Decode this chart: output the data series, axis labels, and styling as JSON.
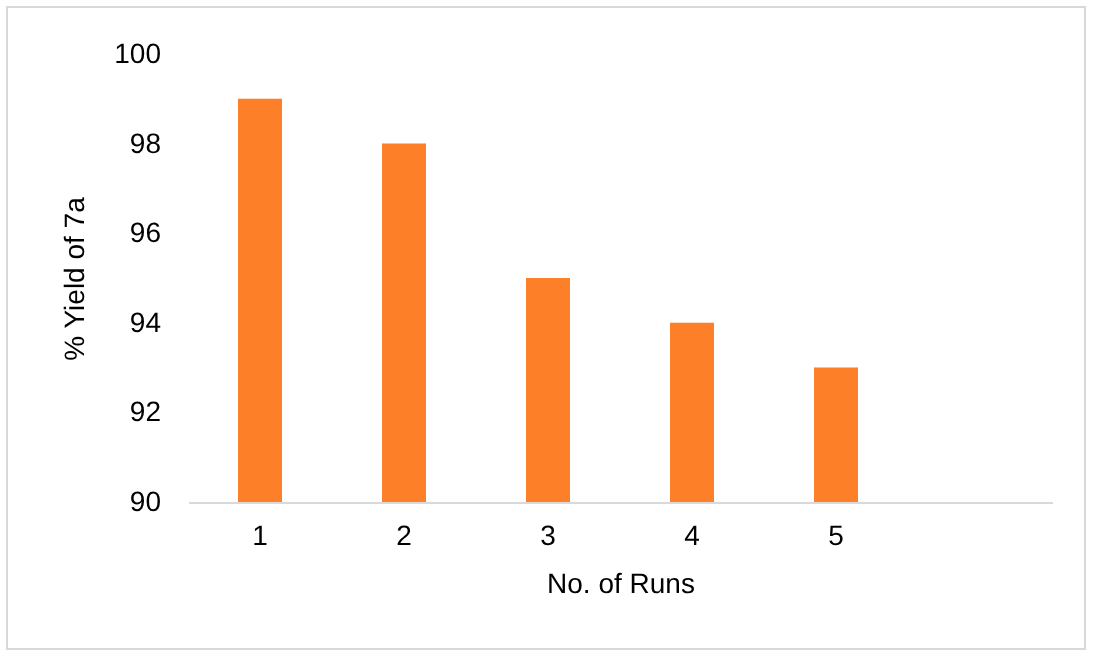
{
  "chart_data": {
    "type": "bar",
    "xlabel": "No. of Runs",
    "ylabel": "% Yield of 7a",
    "categories": [
      "1",
      "2",
      "3",
      "4",
      "5",
      null
    ],
    "values": [
      99,
      98,
      95,
      94,
      93,
      null
    ],
    "color": "#fd7f28",
    "ylim": [
      90,
      100
    ],
    "yticks": [
      90,
      92,
      94,
      96,
      98,
      100
    ],
    "grid": false
  }
}
